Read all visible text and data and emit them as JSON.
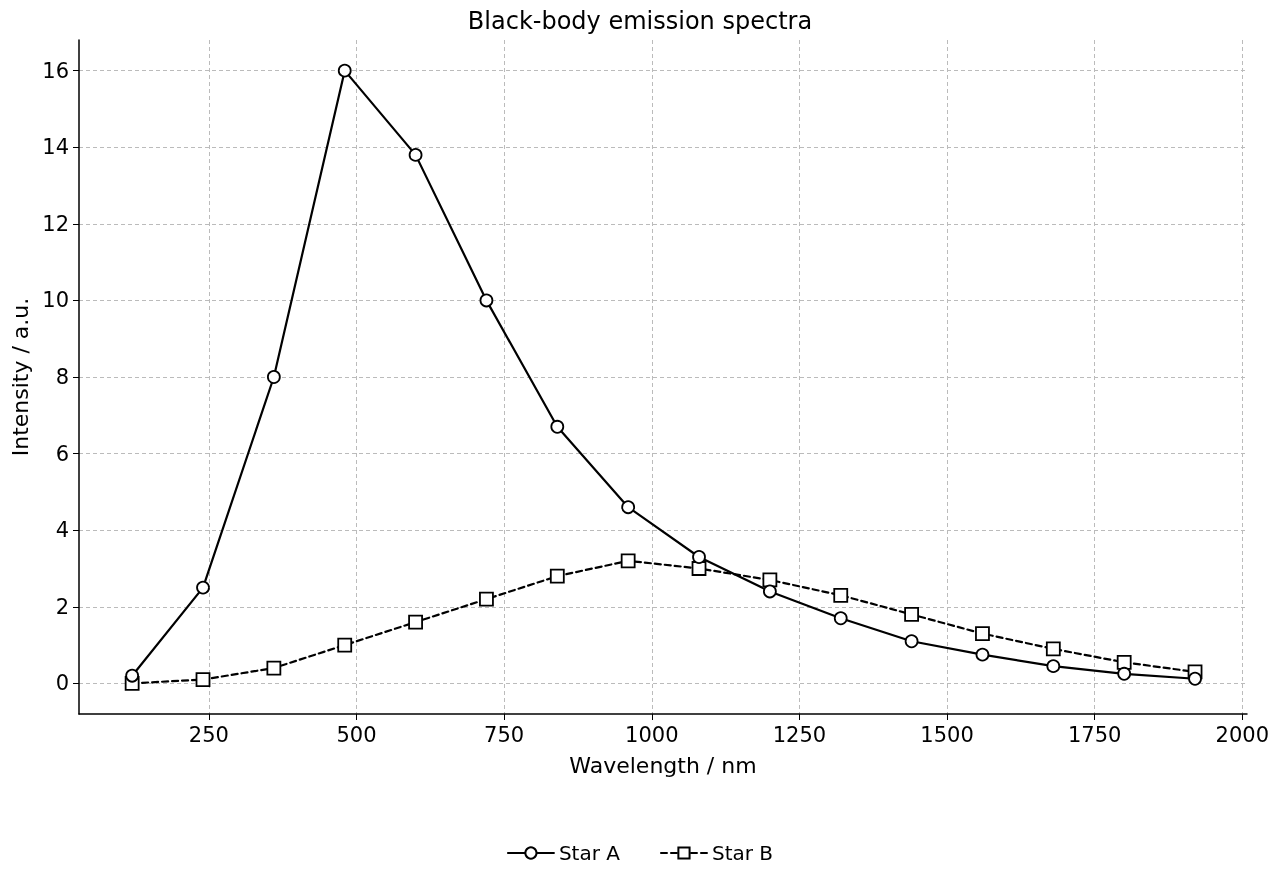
{
  "chart_data": {
    "type": "line",
    "title": "Black-body emission spectra",
    "xlabel": "Wavelength / nm",
    "ylabel": "Intensity / a.u.",
    "x": [
      120,
      240,
      360,
      480,
      600,
      720,
      840,
      960,
      1080,
      1200,
      1320,
      1440,
      1560,
      1680,
      1800,
      1920
    ],
    "series": [
      {
        "name": "Star A",
        "color": "#000000",
        "marker": "circle",
        "line_style": "solid",
        "values": [
          0.2,
          2.5,
          8,
          16,
          13.8,
          10,
          6.7,
          4.6,
          3.3,
          2.4,
          1.7,
          1.1,
          0.75,
          0.45,
          0.25,
          0.12
        ]
      },
      {
        "name": "Star B",
        "color": "#000000",
        "marker": "square",
        "line_style": "dashed",
        "values": [
          0,
          0.1,
          0.4,
          1.0,
          1.6,
          2.2,
          2.8,
          3.2,
          3.0,
          2.7,
          2.3,
          1.8,
          1.3,
          0.9,
          0.55,
          0.3
        ]
      }
    ],
    "xlim": [
      30,
      2008
    ],
    "xticks": [
      250,
      500,
      750,
      1000,
      1250,
      1500,
      1750,
      2000
    ],
    "ylim": [
      -0.8,
      16.8
    ],
    "yticks": [
      0,
      2,
      4,
      6,
      8,
      10,
      12,
      14,
      16
    ],
    "grid": true,
    "legend": "bottom"
  }
}
